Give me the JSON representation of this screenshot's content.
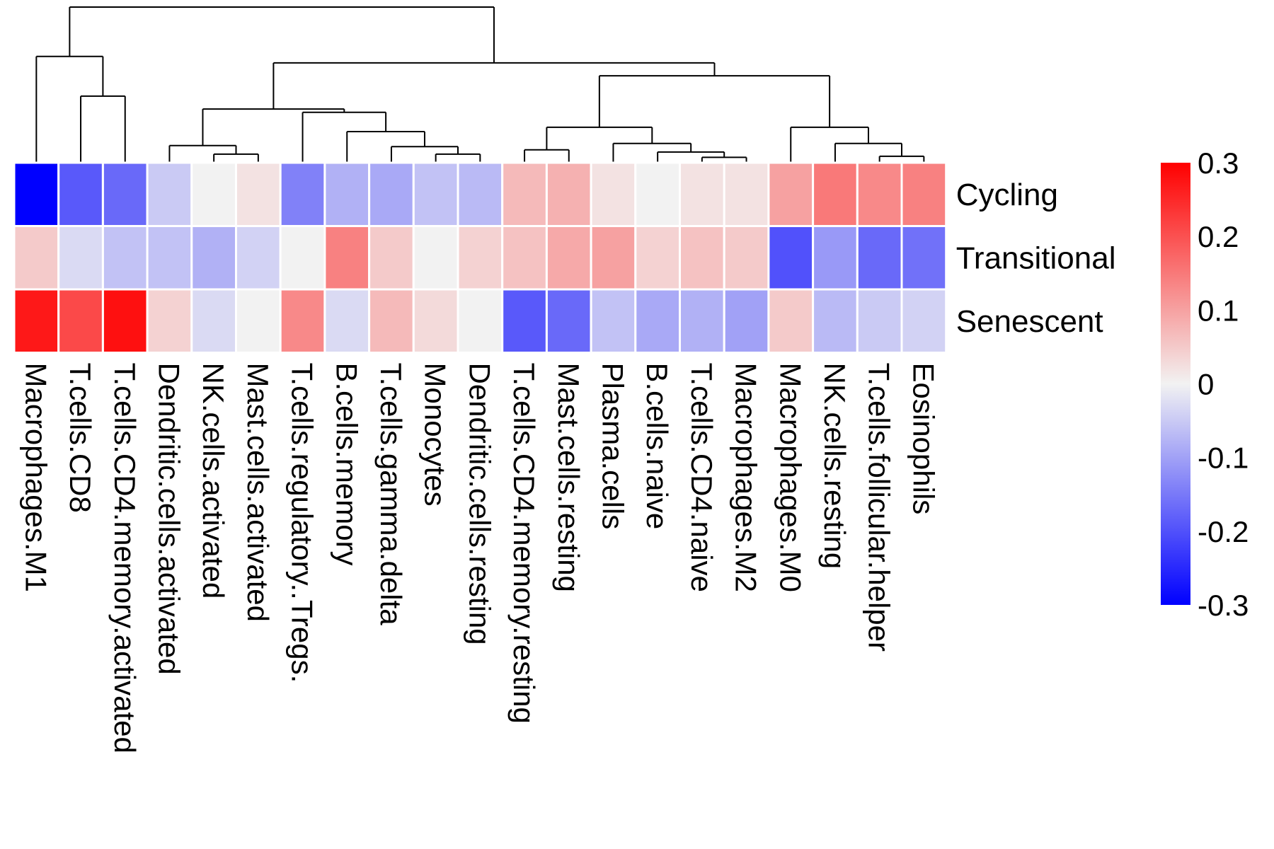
{
  "chart_data": {
    "type": "heatmap",
    "title": "",
    "columns": [
      "Macrophages.M1",
      "T.cells.CD8",
      "T.cells.CD4.memory.activated",
      "Dendritic.cells.activated",
      "NK.cells.activated",
      "Mast.cells.activated",
      "T.cells.regulatory..Tregs.",
      "B.cells.memory",
      "T.cells.gamma.delta",
      "Monocytes",
      "Dendritic.cells.resting",
      "T.cells.CD4.memory.resting",
      "Mast.cells.resting",
      "Plasma.cells",
      "B.cells.naive",
      "T.cells.CD4.naive",
      "Macrophages.M2",
      "Macrophages.M0",
      "NK.cells.resting",
      "T.cells.follicular.helper",
      "Eosinophils"
    ],
    "rows": [
      "Cycling",
      "Transitional",
      "Senescent"
    ],
    "values": [
      [
        -0.3,
        -0.19,
        -0.17,
        -0.05,
        0.0,
        0.02,
        -0.14,
        -0.08,
        -0.09,
        -0.06,
        -0.07,
        0.07,
        0.08,
        0.02,
        0.0,
        0.02,
        0.02,
        0.1,
        0.15,
        0.13,
        0.14
      ],
      [
        0.05,
        -0.03,
        -0.06,
        -0.06,
        -0.08,
        -0.04,
        0.0,
        0.14,
        0.05,
        0.0,
        0.04,
        0.06,
        0.09,
        0.1,
        0.04,
        0.06,
        0.05,
        -0.2,
        -0.11,
        -0.17,
        -0.16
      ],
      [
        0.27,
        0.21,
        0.28,
        0.04,
        -0.03,
        0.0,
        0.13,
        -0.03,
        0.07,
        0.03,
        0.0,
        -0.19,
        -0.17,
        -0.06,
        -0.09,
        -0.08,
        -0.1,
        0.05,
        -0.07,
        -0.05,
        -0.04
      ]
    ],
    "color_scale": {
      "min": -0.3,
      "max": 0.3,
      "low_color": "#0000ff",
      "mid_color": "#f2f2f2",
      "high_color": "#ff0000"
    },
    "legend": {
      "ticks": [
        "0.3",
        "0.2",
        "0.1",
        "0",
        "-0.1",
        "-0.2",
        "-0.3"
      ],
      "position": "right"
    },
    "column_dendrogram": [
      [
        1,
        2,
        0.62
      ],
      [
        0,
        21,
        0.99
      ],
      [
        4,
        5,
        0.08
      ],
      [
        3,
        23,
        0.16
      ],
      [
        9,
        10,
        0.08
      ],
      [
        8,
        25,
        0.15
      ],
      [
        7,
        26,
        0.29
      ],
      [
        6,
        27,
        0.47
      ],
      [
        24,
        28,
        0.5
      ],
      [
        15,
        16,
        0.05
      ],
      [
        14,
        30,
        0.1
      ],
      [
        13,
        31,
        0.18
      ],
      [
        11,
        12,
        0.12
      ],
      [
        33,
        32,
        0.33
      ],
      [
        19,
        20,
        0.06
      ],
      [
        18,
        35,
        0.18
      ],
      [
        17,
        36,
        0.33
      ],
      [
        34,
        37,
        0.81
      ],
      [
        29,
        38,
        0.93
      ],
      [
        22,
        39,
        1.45
      ]
    ]
  }
}
